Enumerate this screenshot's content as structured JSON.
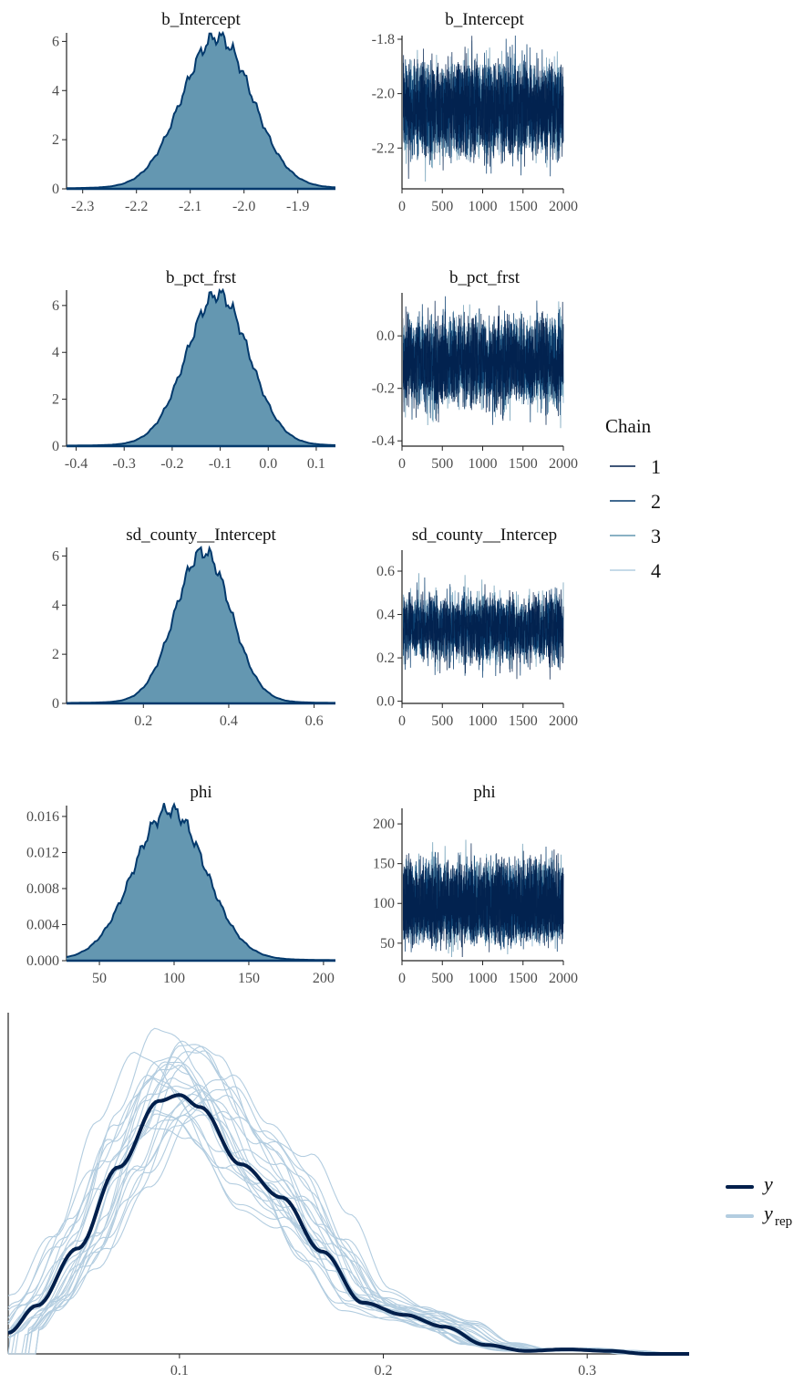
{
  "chart_data": [
    {
      "type": "area",
      "title": "b_Intercept",
      "xticks": [
        -2.3,
        -2.2,
        -2.1,
        -2.0,
        -1.9
      ],
      "xtick_labels": [
        "-2.3",
        "-2.2",
        "-2.1",
        "-2.0",
        "-1.9"
      ],
      "yticks": [
        0,
        2,
        4,
        6
      ],
      "ytick_labels": [
        "0",
        "2",
        "4",
        "6"
      ],
      "xlim": [
        -2.33,
        -1.83
      ],
      "ylim": [
        0,
        6.2
      ],
      "density": {
        "mean": -2.05,
        "sd": 0.065
      },
      "fill": "#6497b1",
      "stroke": "#03396c"
    },
    {
      "type": "line",
      "title": "b_Intercept",
      "xticks": [
        0,
        500,
        1000,
        1500,
        2000
      ],
      "xtick_labels": [
        "0",
        "500",
        "1000",
        "1500",
        "2000"
      ],
      "yticks": [
        -1.8,
        -2.0,
        -2.2
      ],
      "ytick_labels": [
        "-1.8",
        "-2.0",
        "-2.2"
      ],
      "xlim": [
        0,
        2000
      ],
      "ylim": [
        -2.35,
        -1.8
      ],
      "bands": [
        {
          "center": -1.95,
          "spread": 0.07
        },
        {
          "center": -2.16,
          "spread": 0.07
        }
      ],
      "series": [
        {
          "name": "1",
          "color": "#011f4b"
        },
        {
          "name": "2",
          "color": "#03396c"
        },
        {
          "name": "3",
          "color": "#6497b1"
        },
        {
          "name": "4",
          "color": "#b3cde0"
        }
      ]
    },
    {
      "type": "area",
      "title": "b_pct_frst",
      "xticks": [
        -0.4,
        -0.3,
        -0.2,
        -0.1,
        0.0,
        0.1
      ],
      "xtick_labels": [
        "-0.4",
        "-0.3",
        "-0.2",
        "-0.1",
        "0.0",
        "0.1"
      ],
      "yticks": [
        0,
        2,
        4,
        6
      ],
      "ytick_labels": [
        "0",
        "2",
        "4",
        "6"
      ],
      "xlim": [
        -0.42,
        0.14
      ],
      "ylim": [
        0,
        6.5
      ],
      "density": {
        "mean": -0.105,
        "sd": 0.065
      },
      "fill": "#6497b1",
      "stroke": "#03396c"
    },
    {
      "type": "line",
      "title": "b_pct_frst",
      "xticks": [
        0,
        500,
        1000,
        1500,
        2000
      ],
      "xtick_labels": [
        "0",
        "500",
        "1000",
        "1500",
        "2000"
      ],
      "yticks": [
        0.0,
        -0.2,
        -0.4
      ],
      "ytick_labels": [
        "0.0",
        "-0.2",
        "-0.4"
      ],
      "xlim": [
        0,
        2000
      ],
      "ylim": [
        -0.42,
        0.15
      ],
      "bands": [
        {
          "center": 0.0,
          "spread": 0.07
        },
        {
          "center": -0.2,
          "spread": 0.07
        }
      ],
      "series": [
        {
          "name": "1",
          "color": "#011f4b"
        },
        {
          "name": "2",
          "color": "#03396c"
        },
        {
          "name": "3",
          "color": "#6497b1"
        },
        {
          "name": "4",
          "color": "#b3cde0"
        }
      ]
    },
    {
      "type": "area",
      "title": "sd_county__Intercept",
      "xticks": [
        0.2,
        0.4,
        0.6
      ],
      "xtick_labels": [
        "0.2",
        "0.4",
        "0.6"
      ],
      "yticks": [
        0,
        2,
        4,
        6
      ],
      "ytick_labels": [
        "0",
        "2",
        "4",
        "6"
      ],
      "xlim": [
        0.02,
        0.65
      ],
      "ylim": [
        0,
        6.2
      ],
      "density": {
        "mean": 0.34,
        "sd": 0.065
      },
      "fill": "#6497b1",
      "stroke": "#03396c"
    },
    {
      "type": "line",
      "title": "sd_county__Intercep",
      "xticks": [
        0,
        500,
        1000,
        1500,
        2000
      ],
      "xtick_labels": [
        "0",
        "500",
        "1000",
        "1500",
        "2000"
      ],
      "yticks": [
        0.0,
        0.2,
        0.4,
        0.6
      ],
      "ytick_labels": [
        "0.0",
        "0.2",
        "0.4",
        "0.6"
      ],
      "xlim": [
        0,
        2000
      ],
      "ylim": [
        -0.01,
        0.68
      ],
      "bands": [
        {
          "center": 0.42,
          "spread": 0.07
        },
        {
          "center": 0.25,
          "spread": 0.07
        }
      ],
      "series": [
        {
          "name": "1",
          "color": "#011f4b"
        },
        {
          "name": "2",
          "color": "#03396c"
        },
        {
          "name": "3",
          "color": "#6497b1"
        },
        {
          "name": "4",
          "color": "#b3cde0"
        }
      ]
    },
    {
      "type": "area",
      "title": "phi",
      "xticks": [
        50,
        100,
        150,
        200
      ],
      "xtick_labels": [
        "50",
        "100",
        "150",
        "200"
      ],
      "yticks": [
        0.0,
        0.004,
        0.008,
        0.012,
        0.016
      ],
      "ytick_labels": [
        "0.000",
        "0.004",
        "0.008",
        "0.012",
        "0.016"
      ],
      "xlim": [
        28,
        208
      ],
      "ylim": [
        0,
        0.0168
      ],
      "density": {
        "mean": 97,
        "sd": 24
      },
      "fill": "#6497b1",
      "stroke": "#03396c"
    },
    {
      "type": "line",
      "title": "phi",
      "xticks": [
        0,
        500,
        1000,
        1500,
        2000
      ],
      "xtick_labels": [
        "0",
        "500",
        "1000",
        "1500",
        "2000"
      ],
      "yticks": [
        50,
        100,
        150,
        200
      ],
      "ytick_labels": [
        "50",
        "100",
        "150",
        "200"
      ],
      "xlim": [
        0,
        2000
      ],
      "ylim": [
        28,
        215
      ],
      "bands": [
        {
          "center": 135,
          "spread": 20
        },
        {
          "center": 65,
          "spread": 14
        }
      ],
      "series": [
        {
          "name": "1",
          "color": "#011f4b"
        },
        {
          "name": "2",
          "color": "#03396c"
        },
        {
          "name": "3",
          "color": "#6497b1"
        },
        {
          "name": "4",
          "color": "#b3cde0"
        }
      ]
    },
    {
      "type": "line",
      "xticks": [
        0.1,
        0.2,
        0.3
      ],
      "xtick_labels": [
        "0.1",
        "0.2",
        "0.3"
      ],
      "xlim": [
        0.016,
        0.35
      ],
      "ylim": [
        0,
        1
      ],
      "y_observed": {
        "x": [
          0.016,
          0.03,
          0.05,
          0.07,
          0.09,
          0.1,
          0.11,
          0.13,
          0.15,
          0.17,
          0.19,
          0.21,
          0.23,
          0.25,
          0.27,
          0.29,
          0.31,
          0.33,
          0.35
        ],
        "y": [
          0.07,
          0.16,
          0.35,
          0.62,
          0.84,
          0.86,
          0.82,
          0.63,
          0.52,
          0.34,
          0.17,
          0.13,
          0.09,
          0.03,
          0.01,
          0.015,
          0.01,
          0.0,
          0.0
        ]
      },
      "y_rep_count": 24,
      "legend": [
        {
          "label": "y",
          "sub": "",
          "color": "#011f4b"
        },
        {
          "label": "y",
          "sub": "rep",
          "color": "#b3cde0"
        }
      ]
    }
  ],
  "legend": {
    "title": "Chain",
    "entries": [
      {
        "label": "1",
        "color": "#011f4b"
      },
      {
        "label": "2",
        "color": "#03396c"
      },
      {
        "label": "3",
        "color": "#6497b1"
      },
      {
        "label": "4",
        "color": "#b3cde0"
      }
    ]
  }
}
